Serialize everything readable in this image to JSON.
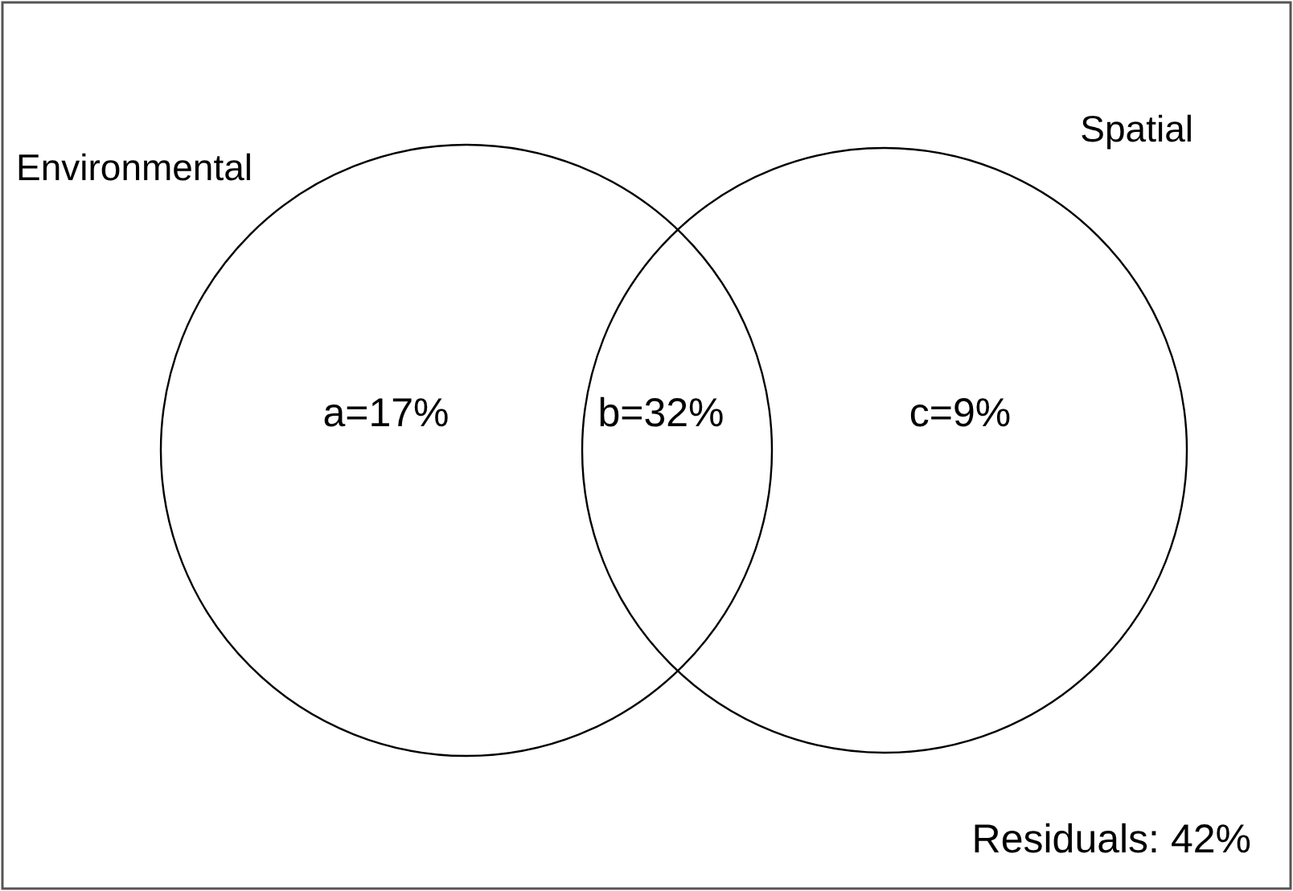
{
  "chart_data": {
    "type": "other",
    "annotations": [
      "Environmental",
      "Spatial"
    ],
    "categories": [
      null,
      null,
      null,
      null
    ],
    "values": [
      17,
      32,
      9,
      42
    ],
    "value_labels": [
      "a=17%",
      "b=32%",
      "c=9%",
      "Residuals: 42%"
    ]
  }
}
